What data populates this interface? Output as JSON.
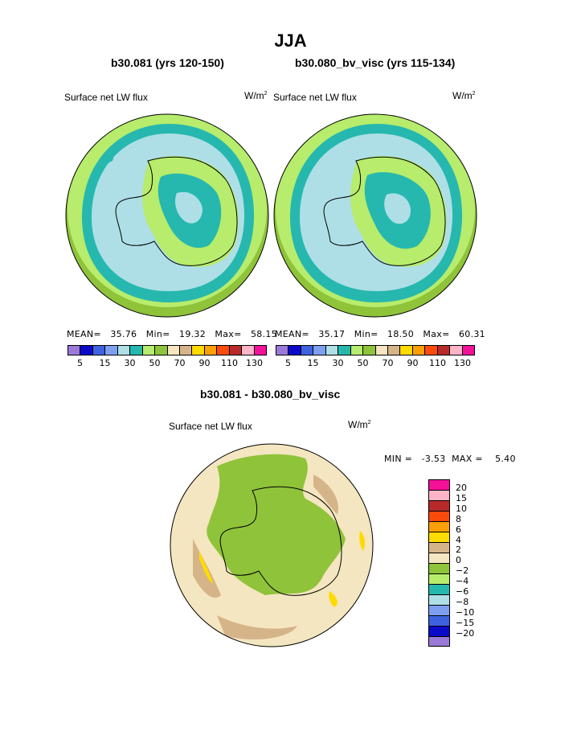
{
  "title": "JJA",
  "panel_left": {
    "heading": "b30.081 (yrs 120-150)",
    "variable": "Surface net LW flux",
    "units_base": "W/m",
    "units_exp": "2",
    "stats": {
      "mean_label": "MEAN=",
      "mean": "35.76",
      "min_label": "Min=",
      "min": "19.32",
      "max_label": "Max=",
      "max": "58.15"
    }
  },
  "panel_right": {
    "heading": "b30.080_bv_visc (yrs 115-134)",
    "variable": "Surface net LW flux",
    "units_base": "W/m",
    "units_exp": "2",
    "stats": {
      "mean_label": "MEAN=",
      "mean": "35.17",
      "min_label": "Min=",
      "min": "18.50",
      "max_label": "Max=",
      "max": "60.31"
    }
  },
  "panel_diff": {
    "heading": "b30.081 - b30.080_bv_visc",
    "variable": "Surface net LW flux",
    "units_base": "W/m",
    "units_exp": "2",
    "minmax": "MIN =   -3.53  MAX =    5.40"
  },
  "legend_levels": {
    "tick_labels": [
      "5",
      "15",
      "30",
      "50",
      "70",
      "90",
      "110",
      "130"
    ],
    "colors": [
      "#9b79d8",
      "#0a0ac8",
      "#3f62e0",
      "#7e9ff0",
      "#aedfe6",
      "#26b8ae",
      "#b7ec6c",
      "#8fc33a",
      "#f4e6c0",
      "#d6b48a",
      "#fedb00",
      "#fd9f07",
      "#fa4b0c",
      "#b82a2a",
      "#ffb4c8",
      "#f5109a"
    ]
  },
  "legend_diff": {
    "labels": [
      "20",
      "15",
      "10",
      "8",
      "6",
      "4",
      "2",
      "0",
      "−2",
      "−4",
      "−6",
      "−8",
      "−10",
      "−15",
      "−20"
    ],
    "colors": [
      "#f5109a",
      "#ffb4c8",
      "#b82a2a",
      "#fa4b0c",
      "#fd9f07",
      "#fedb00",
      "#d6b48a",
      "#f4e6c0",
      "#8fc33a",
      "#b7ec6c",
      "#26b8ae",
      "#aedfe6",
      "#7e9ff0",
      "#3f62e0",
      "#0a0ac8",
      "#9b79d8"
    ]
  },
  "map_colors": {
    "ocean_light": "#aedfe6",
    "teal": "#26b8ae",
    "light_green": "#b7ec6c",
    "green": "#8fc33a",
    "cream": "#f4e6c0",
    "tan": "#d6b48a",
    "yellow": "#fedb00",
    "coast": "#000000"
  }
}
